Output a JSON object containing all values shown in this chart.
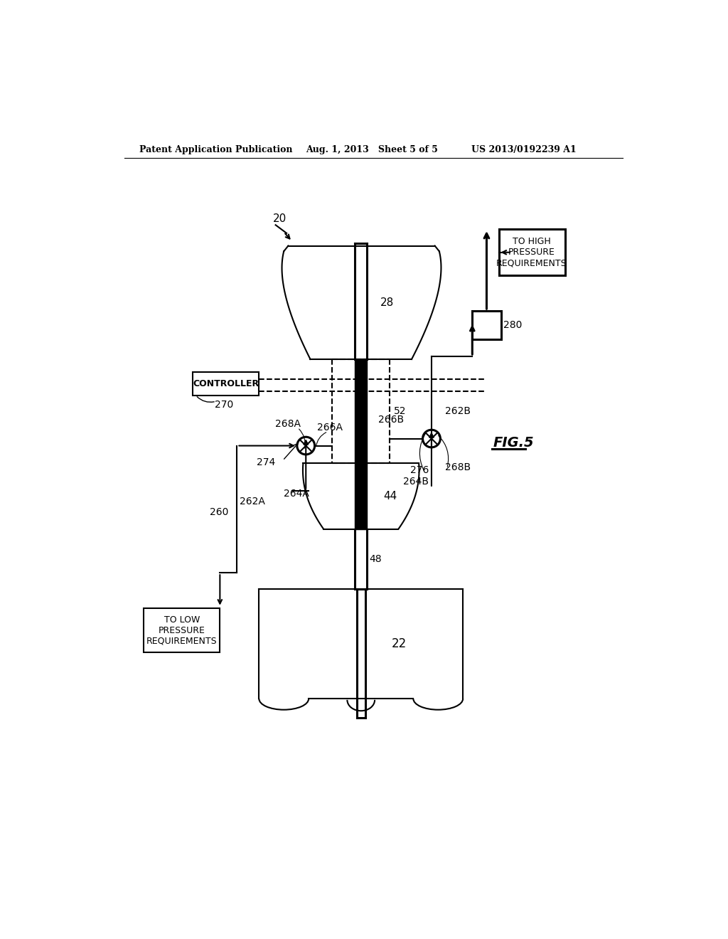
{
  "bg_color": "#ffffff",
  "line_color": "#000000",
  "header_left": "Patent Application Publication",
  "header_mid": "Aug. 1, 2013   Sheet 5 of 5",
  "header_right": "US 2013/0192239 A1",
  "fig_label": "FIG.5",
  "ref_20": "20",
  "ref_22": "22",
  "ref_28": "28",
  "ref_44": "44",
  "ref_48": "48",
  "ref_52": "52",
  "ref_260": "260",
  "ref_262A": "262A",
  "ref_262B": "262B",
  "ref_264A": "264A",
  "ref_264B": "264B",
  "ref_266A": "266A",
  "ref_266B": "266B",
  "ref_268A": "268A",
  "ref_268B": "268B",
  "ref_270": "270",
  "ref_274": "274",
  "ref_276": "276",
  "ref_280": "280",
  "controller_label": "CONTROLLER",
  "high_pressure_label": "TO HIGH\nPRESSURE\nREQUIREMENTS",
  "low_pressure_label": "TO LOW\nPRESSURE\nREQUIREMENTS"
}
